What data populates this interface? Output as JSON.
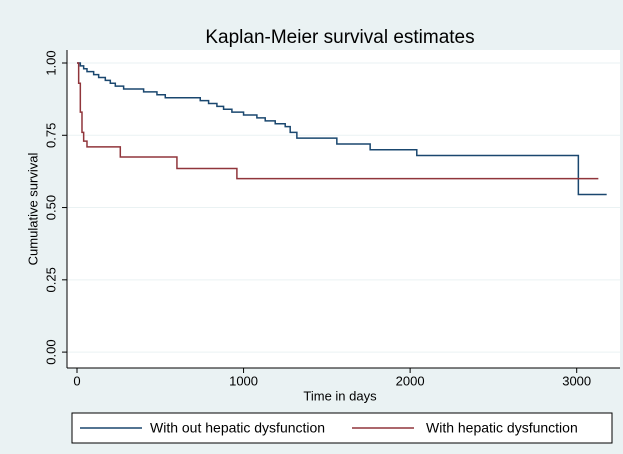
{
  "chart_data": {
    "type": "line",
    "title": "Kaplan-Meier survival estimates",
    "x_label": "Time in days",
    "y_label": "Cumulative survival",
    "xlim": [
      -60,
      3260
    ],
    "ylim": [
      -0.055,
      1.045
    ],
    "xticks": [
      0,
      1000,
      2000,
      3000
    ],
    "yticks": [
      {
        "value": 0,
        "label": "0.00"
      },
      {
        "value": 0.25,
        "label": "0.25"
      },
      {
        "value": 0.5,
        "label": "0.50"
      },
      {
        "value": 0.75,
        "label": "0.75"
      },
      {
        "value": 1,
        "label": "1.00"
      }
    ],
    "grid": true,
    "legend": "bottom",
    "series": [
      {
        "name": "With out hepatic dysfunction",
        "color": "#1a476f",
        "x": [
          0,
          20,
          20,
          40,
          40,
          60,
          60,
          100,
          100,
          130,
          130,
          170,
          170,
          200,
          200,
          230,
          230,
          280,
          280,
          400,
          400,
          480,
          480,
          530,
          530,
          740,
          740,
          790,
          790,
          840,
          840,
          880,
          880,
          930,
          930,
          1000,
          1000,
          1080,
          1080,
          1130,
          1130,
          1190,
          1190,
          1250,
          1250,
          1280,
          1280,
          1320,
          1320,
          1560,
          1560,
          1760,
          1760,
          2040,
          2040,
          3010,
          3010,
          3180
        ],
        "values": [
          1,
          1,
          0.99,
          0.99,
          0.98,
          0.98,
          0.97,
          0.97,
          0.96,
          0.96,
          0.95,
          0.95,
          0.94,
          0.94,
          0.93,
          0.93,
          0.92,
          0.92,
          0.91,
          0.91,
          0.9,
          0.9,
          0.89,
          0.89,
          0.88,
          0.88,
          0.87,
          0.87,
          0.86,
          0.86,
          0.85,
          0.85,
          0.84,
          0.84,
          0.83,
          0.83,
          0.82,
          0.82,
          0.81,
          0.81,
          0.8,
          0.8,
          0.79,
          0.79,
          0.78,
          0.78,
          0.76,
          0.76,
          0.74,
          0.74,
          0.72,
          0.72,
          0.7,
          0.7,
          0.68,
          0.68,
          0.545,
          0.545
        ]
      },
      {
        "name": "With hepatic dysfunction",
        "color": "#90353b",
        "x": [
          0,
          10,
          10,
          20,
          20,
          30,
          30,
          40,
          40,
          60,
          60,
          260,
          260,
          600,
          600,
          960,
          960,
          3130
        ],
        "values": [
          1,
          1,
          0.93,
          0.93,
          0.83,
          0.83,
          0.76,
          0.76,
          0.73,
          0.73,
          0.71,
          0.71,
          0.675,
          0.675,
          0.635,
          0.635,
          0.6,
          0.6
        ]
      }
    ]
  }
}
